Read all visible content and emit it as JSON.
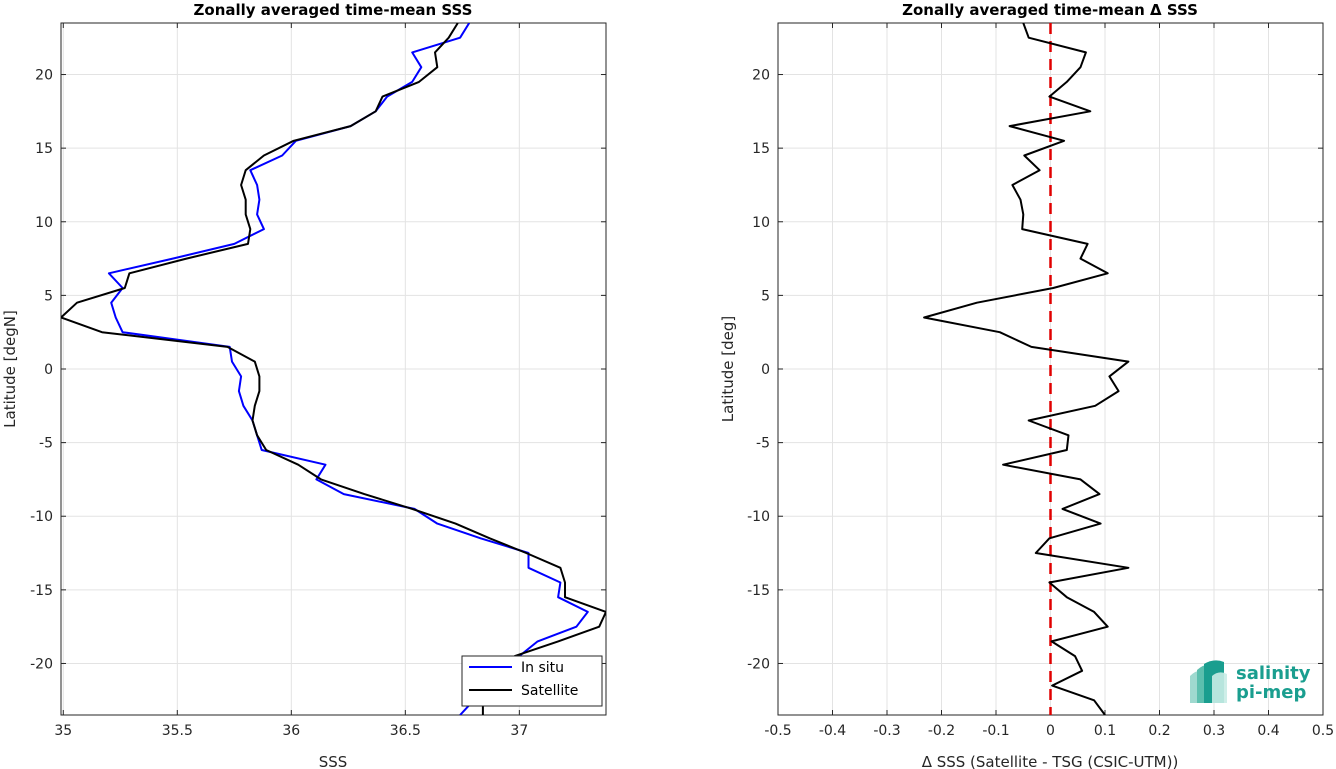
{
  "chart_data": [
    {
      "type": "line",
      "title": "Zonally averaged time-mean SSS",
      "xlabel": "SSS",
      "ylabel": "Latitude [degN]",
      "xlim": [
        34.99,
        37.38
      ],
      "ylim": [
        -23.5,
        23.5
      ],
      "xticks": [
        35,
        35.5,
        36,
        36.5,
        37
      ],
      "xtick_labels": [
        "35",
        "35.5",
        "36",
        "36.5",
        "37"
      ],
      "yticks": [
        -20,
        -15,
        -10,
        -5,
        0,
        5,
        10,
        15,
        20
      ],
      "ytick_labels": [
        "-20",
        "-15",
        "-10",
        "-5",
        "0",
        "5",
        "10",
        "15",
        "20"
      ],
      "grid": true,
      "legend": "bottom-right",
      "series": [
        {
          "name": "In situ",
          "color": "#0000ff",
          "y": [
            23.5,
            22.5,
            21.5,
            20.5,
            19.5,
            18.5,
            17.5,
            16.5,
            15.5,
            14.5,
            13.5,
            12.5,
            11.5,
            10.5,
            9.5,
            8.5,
            7.5,
            6.5,
            5.5,
            4.5,
            3.5,
            2.5,
            1.5,
            0.5,
            -0.5,
            -1.5,
            -2.5,
            -3.5,
            -4.5,
            -5.5,
            -6.5,
            -7.5,
            -8.5,
            -9.5,
            -10.5,
            -11.5,
            -12.5,
            -13.5,
            -14.5,
            -15.5,
            -16.5,
            -17.5,
            -18.5,
            -19.5,
            -20.5,
            -21.5,
            -22.5,
            -23.5
          ],
          "x": [
            36.78,
            36.74,
            36.53,
            36.57,
            36.53,
            36.42,
            36.37,
            36.26,
            36.02,
            35.96,
            35.82,
            35.85,
            35.86,
            35.85,
            35.88,
            35.75,
            35.48,
            35.2,
            35.26,
            35.21,
            35.23,
            35.26,
            35.73,
            35.74,
            35.78,
            35.77,
            35.79,
            35.83,
            35.85,
            35.87,
            36.15,
            36.11,
            36.23,
            36.54,
            36.64,
            36.83,
            37.04,
            37.04,
            37.18,
            37.17,
            37.3,
            37.25,
            37.08,
            37.0,
            36.95,
            36.89,
            36.8,
            36.74
          ]
        },
        {
          "name": "Satellite",
          "color": "#000000",
          "y": [
            23.5,
            22.5,
            21.5,
            20.5,
            19.5,
            18.5,
            17.5,
            16.5,
            15.5,
            14.5,
            13.5,
            12.5,
            11.5,
            10.5,
            9.5,
            8.5,
            7.5,
            6.5,
            5.5,
            4.5,
            3.5,
            2.5,
            1.5,
            0.5,
            -0.5,
            -1.5,
            -2.5,
            -3.5,
            -4.5,
            -5.5,
            -6.5,
            -7.5,
            -8.5,
            -9.5,
            -10.5,
            -11.5,
            -12.5,
            -13.5,
            -14.5,
            -15.5,
            -16.5,
            -17.5,
            -18.5,
            -19.5,
            -20.5,
            -21.5,
            -22.5,
            -23.5
          ],
          "x": [
            36.73,
            36.69,
            36.63,
            36.64,
            36.56,
            36.4,
            36.37,
            36.26,
            36.01,
            35.88,
            35.8,
            35.78,
            35.8,
            35.8,
            35.82,
            35.81,
            35.54,
            35.29,
            35.27,
            35.06,
            34.99,
            35.17,
            35.72,
            35.84,
            35.86,
            35.86,
            35.84,
            35.83,
            35.85,
            35.89,
            36.03,
            36.13,
            36.32,
            36.53,
            36.72,
            36.87,
            37.03,
            37.18,
            37.2,
            37.2,
            37.38,
            37.35,
            37.17,
            36.98,
            36.93,
            36.86,
            36.84,
            36.84
          ]
        }
      ]
    },
    {
      "type": "line",
      "title": "Zonally averaged time-mean Δ SSS",
      "xlabel": "Δ SSS (Satellite - TSG (CSIC-UTM))",
      "ylabel": "Latitude [deg]",
      "xlim": [
        -0.5,
        0.5
      ],
      "ylim": [
        -23.5,
        23.5
      ],
      "xticks": [
        -0.5,
        -0.4,
        -0.3,
        -0.2,
        -0.1,
        0,
        0.1,
        0.2,
        0.3,
        0.4,
        0.5
      ],
      "xtick_labels": [
        "-0.5",
        "-0.4",
        "-0.3",
        "-0.2",
        "-0.1",
        "0",
        "0.1",
        "0.2",
        "0.3",
        "0.4",
        "0.5"
      ],
      "yticks": [
        -20,
        -15,
        -10,
        -5,
        0,
        5,
        10,
        15,
        20
      ],
      "ytick_labels": [
        "-20",
        "-15",
        "-10",
        "-5",
        "0",
        "5",
        "10",
        "15",
        "20"
      ],
      "grid": true,
      "reference_line": {
        "x": 0,
        "color": "#e00000",
        "style": "dashed"
      },
      "series": [
        {
          "color": "#000000",
          "y": [
            23.5,
            22.5,
            21.5,
            20.5,
            19.5,
            18.5,
            17.5,
            16.5,
            15.5,
            14.5,
            13.5,
            12.5,
            11.5,
            10.5,
            9.5,
            8.5,
            7.5,
            6.5,
            5.5,
            4.5,
            3.5,
            2.5,
            1.5,
            0.5,
            -0.5,
            -1.5,
            -2.5,
            -3.5,
            -4.5,
            -5.5,
            -6.5,
            -7.5,
            -8.5,
            -9.5,
            -10.5,
            -11.5,
            -12.5,
            -13.5,
            -14.5,
            -15.5,
            -16.5,
            -17.5,
            -18.5,
            -19.5,
            -20.5,
            -21.5,
            -22.5,
            -23.5
          ],
          "x": [
            -0.05,
            -0.04,
            0.065,
            0.055,
            0.03,
            -0.002,
            0.073,
            -0.075,
            0.025,
            -0.048,
            -0.02,
            -0.07,
            -0.055,
            -0.05,
            -0.052,
            0.068,
            0.055,
            0.105,
            0.005,
            -0.135,
            -0.232,
            -0.093,
            -0.035,
            0.143,
            0.108,
            0.125,
            0.082,
            -0.04,
            0.033,
            0.03,
            -0.087,
            0.055,
            0.09,
            0.022,
            0.092,
            -0.002,
            -0.027,
            0.143,
            -0.002,
            0.03,
            0.08,
            0.105,
            0.002,
            0.045,
            0.058,
            0.003,
            0.08,
            0.1
          ]
        }
      ]
    }
  ],
  "logo": {
    "line1": "salinity",
    "line2": "pi-mep",
    "color": "#1a9e8f"
  }
}
